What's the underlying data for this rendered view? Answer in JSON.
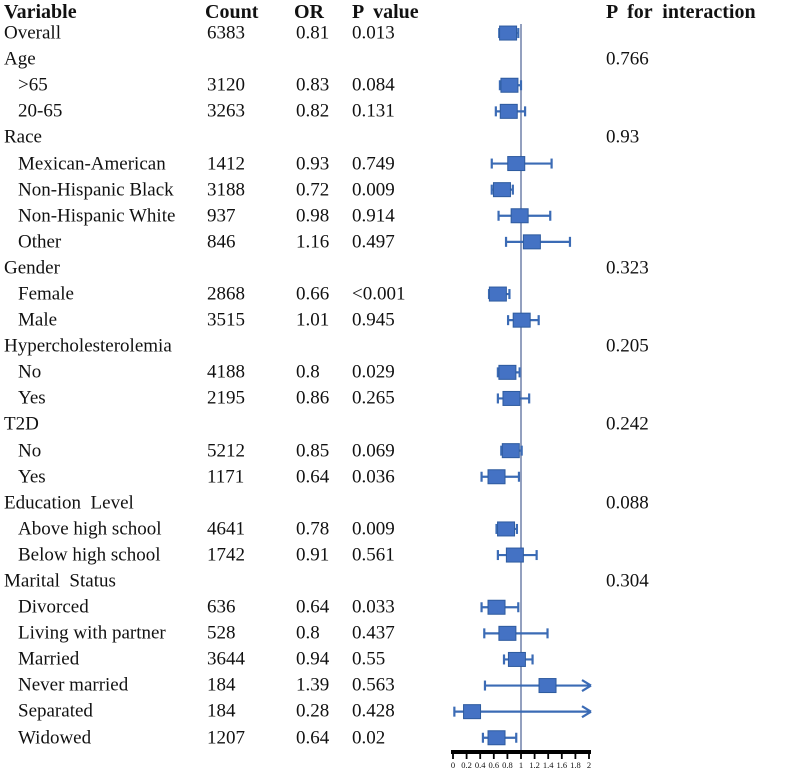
{
  "columns": {
    "variable": "Variable",
    "count": "Count",
    "or": "OR",
    "p_value": "P  value",
    "p_interaction": "P  for  interaction"
  },
  "colors": {
    "marker_fill": "#4472C4",
    "marker_border": "#2E5B9F",
    "whisker": "#3B6BB5",
    "ref_line": "#93A0BF",
    "axis": "#000000",
    "text": "#111111"
  },
  "chart_data": {
    "type": "scatter",
    "subtype": "forest-plot",
    "title": "",
    "xlabel": "",
    "ylabel": "",
    "xlim": [
      0,
      2
    ],
    "x_tick_labels": [
      "0",
      "0.2",
      "0.4",
      "0.6",
      "0.8",
      "1",
      "1.2",
      "1.4",
      "1.6",
      "1.8",
      "2"
    ],
    "x_tick_values": [
      0,
      0.2,
      0.4,
      0.6,
      0.8,
      1,
      1.2,
      1.4,
      1.6,
      1.8,
      2
    ],
    "reference_line_x": 1,
    "grid": false,
    "rows": [
      {
        "label": "Overall",
        "indent": 0,
        "count": "6383",
        "or": "0.81",
        "p": "0.013",
        "est": 0.81,
        "ci_low": 0.68,
        "ci_high": 0.96,
        "arrow_right": false,
        "p_interaction": ""
      },
      {
        "label": "Age",
        "indent": 0,
        "count": "",
        "or": "",
        "p": "",
        "p_interaction": "0.766"
      },
      {
        "label": ">65",
        "indent": 1,
        "count": "3120",
        "or": "0.83",
        "p": "0.084",
        "est": 0.83,
        "ci_low": 0.69,
        "ci_high": 1.0,
        "arrow_right": false,
        "p_interaction": ""
      },
      {
        "label": "20-65",
        "indent": 1,
        "count": "3263",
        "or": "0.82",
        "p": "0.131",
        "est": 0.82,
        "ci_low": 0.63,
        "ci_high": 1.06,
        "arrow_right": false,
        "p_interaction": ""
      },
      {
        "label": "Race",
        "indent": 0,
        "count": "",
        "or": "",
        "p": "",
        "p_interaction": "0.93"
      },
      {
        "label": "Mexican-American",
        "indent": 1,
        "count": "1412",
        "or": "0.93",
        "p": "0.749",
        "est": 0.93,
        "ci_low": 0.57,
        "ci_high": 1.45,
        "arrow_right": false,
        "p_interaction": ""
      },
      {
        "label": "Non-Hispanic Black",
        "indent": 1,
        "count": "3188",
        "or": "0.72",
        "p": "0.009",
        "est": 0.72,
        "ci_low": 0.57,
        "ci_high": 0.88,
        "arrow_right": false,
        "p_interaction": ""
      },
      {
        "label": "Non-Hispanic White",
        "indent": 1,
        "count": "937",
        "or": "0.98",
        "p": "0.914",
        "est": 0.98,
        "ci_low": 0.67,
        "ci_high": 1.43,
        "arrow_right": false,
        "p_interaction": ""
      },
      {
        "label": "Other",
        "indent": 1,
        "count": "846",
        "or": "1.16",
        "p": "0.497",
        "est": 1.16,
        "ci_low": 0.78,
        "ci_high": 1.72,
        "arrow_right": false,
        "p_interaction": ""
      },
      {
        "label": "Gender",
        "indent": 0,
        "count": "",
        "or": "",
        "p": "",
        "p_interaction": "0.323"
      },
      {
        "label": "Female",
        "indent": 1,
        "count": "2868",
        "or": "0.66",
        "p": "<0.001",
        "est": 0.66,
        "ci_low": 0.53,
        "ci_high": 0.83,
        "arrow_right": false,
        "p_interaction": ""
      },
      {
        "label": "Male",
        "indent": 1,
        "count": "3515",
        "or": "1.01",
        "p": "0.945",
        "est": 1.01,
        "ci_low": 0.81,
        "ci_high": 1.26,
        "arrow_right": false,
        "p_interaction": ""
      },
      {
        "label": "Hypercholesterolemia",
        "indent": 0,
        "count": "",
        "or": "",
        "p": "",
        "p_interaction": "0.205"
      },
      {
        "label": "No",
        "indent": 1,
        "count": "4188",
        "or": "0.8",
        "p": "0.029",
        "est": 0.8,
        "ci_low": 0.66,
        "ci_high": 0.98,
        "arrow_right": false,
        "p_interaction": ""
      },
      {
        "label": "Yes",
        "indent": 1,
        "count": "2195",
        "or": "0.86",
        "p": "0.265",
        "est": 0.86,
        "ci_low": 0.66,
        "ci_high": 1.12,
        "arrow_right": false,
        "p_interaction": ""
      },
      {
        "label": "T2D",
        "indent": 0,
        "count": "",
        "or": "",
        "p": "",
        "p_interaction": "0.242"
      },
      {
        "label": "No",
        "indent": 1,
        "count": "5212",
        "or": "0.85",
        "p": "0.069",
        "est": 0.85,
        "ci_low": 0.71,
        "ci_high": 1.01,
        "arrow_right": false,
        "p_interaction": ""
      },
      {
        "label": "Yes",
        "indent": 1,
        "count": "1171",
        "or": "0.64",
        "p": "0.036",
        "est": 0.64,
        "ci_low": 0.42,
        "ci_high": 0.97,
        "arrow_right": false,
        "p_interaction": ""
      },
      {
        "label": "Education  Level",
        "indent": 0,
        "count": "",
        "or": "",
        "p": "",
        "p_interaction": "0.088"
      },
      {
        "label": "Above high school",
        "indent": 1,
        "count": "4641",
        "or": "0.78",
        "p": "0.009",
        "est": 0.78,
        "ci_low": 0.64,
        "ci_high": 0.94,
        "arrow_right": false,
        "p_interaction": ""
      },
      {
        "label": "Below high school",
        "indent": 1,
        "count": "1742",
        "or": "0.91",
        "p": "0.561",
        "est": 0.91,
        "ci_low": 0.66,
        "ci_high": 1.23,
        "arrow_right": false,
        "p_interaction": ""
      },
      {
        "label": "Marital  Status",
        "indent": 0,
        "count": "",
        "or": "",
        "p": "",
        "p_interaction": "0.304"
      },
      {
        "label": "Divorced",
        "indent": 1,
        "count": "636",
        "or": "0.64",
        "p": "0.033",
        "est": 0.64,
        "ci_low": 0.42,
        "ci_high": 0.96,
        "arrow_right": false,
        "p_interaction": ""
      },
      {
        "label": "Living with partner",
        "indent": 1,
        "count": "528",
        "or": "0.8",
        "p": "0.437",
        "est": 0.8,
        "ci_low": 0.46,
        "ci_high": 1.39,
        "arrow_right": false,
        "p_interaction": ""
      },
      {
        "label": "Married",
        "indent": 1,
        "count": "3644",
        "or": "0.94",
        "p": "0.55",
        "est": 0.94,
        "ci_low": 0.75,
        "ci_high": 1.17,
        "arrow_right": false,
        "p_interaction": ""
      },
      {
        "label": "Never married",
        "indent": 1,
        "count": "184",
        "or": "1.39",
        "p": "0.563",
        "est": 1.39,
        "ci_low": 0.47,
        "ci_high": 2.02,
        "arrow_right": true,
        "p_interaction": ""
      },
      {
        "label": "Separated",
        "indent": 1,
        "count": "184",
        "or": "0.28",
        "p": "0.428",
        "est": 0.28,
        "ci_low": 0.02,
        "ci_high": 2.02,
        "arrow_right": true,
        "p_interaction": ""
      },
      {
        "label": "Widowed",
        "indent": 1,
        "count": "1207",
        "or": "0.64",
        "p": "0.02",
        "est": 0.64,
        "ci_low": 0.44,
        "ci_high": 0.93,
        "arrow_right": false,
        "p_interaction": ""
      }
    ]
  }
}
